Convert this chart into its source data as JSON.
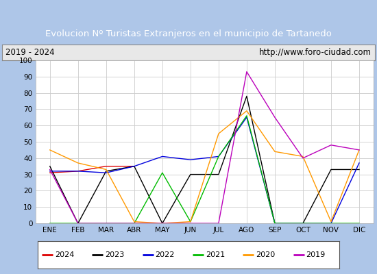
{
  "title": "Evolucion Nº Turistas Extranjeros en el municipio de Tartanedo",
  "subtitle_left": "2019 - 2024",
  "subtitle_right": "http://www.foro-ciudad.com",
  "months": [
    "ENE",
    "FEB",
    "MAR",
    "ABR",
    "MAY",
    "JUN",
    "JUL",
    "AGO",
    "SEP",
    "OCT",
    "NOV",
    "DIC"
  ],
  "series": {
    "2024": {
      "color": "#dd0000",
      "data": [
        31,
        32,
        35,
        35,
        null,
        null,
        null,
        null,
        null,
        null,
        null,
        null
      ]
    },
    "2023": {
      "color": "#000000",
      "data": [
        35,
        0,
        32,
        35,
        0,
        30,
        30,
        78,
        0,
        0,
        33,
        33
      ]
    },
    "2022": {
      "color": "#0000dd",
      "data": [
        32,
        32,
        31,
        35,
        41,
        39,
        41,
        65,
        0,
        0,
        0,
        37
      ]
    },
    "2021": {
      "color": "#00bb00",
      "data": [
        0,
        0,
        0,
        0,
        31,
        1,
        41,
        66,
        0,
        0,
        0,
        0
      ]
    },
    "2020": {
      "color": "#ff9900",
      "data": [
        45,
        37,
        33,
        1,
        0,
        1,
        55,
        69,
        44,
        41,
        1,
        45
      ]
    },
    "2019": {
      "color": "#bb00bb",
      "data": [
        33,
        0,
        0,
        0,
        0,
        0,
        0,
        93,
        65,
        40,
        48,
        45
      ]
    }
  },
  "ylim": [
    0,
    100
  ],
  "yticks": [
    0,
    10,
    20,
    30,
    40,
    50,
    60,
    70,
    80,
    90,
    100
  ],
  "title_bg_color": "#4472c4",
  "title_text_color": "#ffffff",
  "subtitle_bg_color": "#e8e8e8",
  "plot_bg_color": "#e8e8e8",
  "outer_bg_color": "#aec6e8",
  "legend_order": [
    "2024",
    "2023",
    "2022",
    "2021",
    "2020",
    "2019"
  ]
}
